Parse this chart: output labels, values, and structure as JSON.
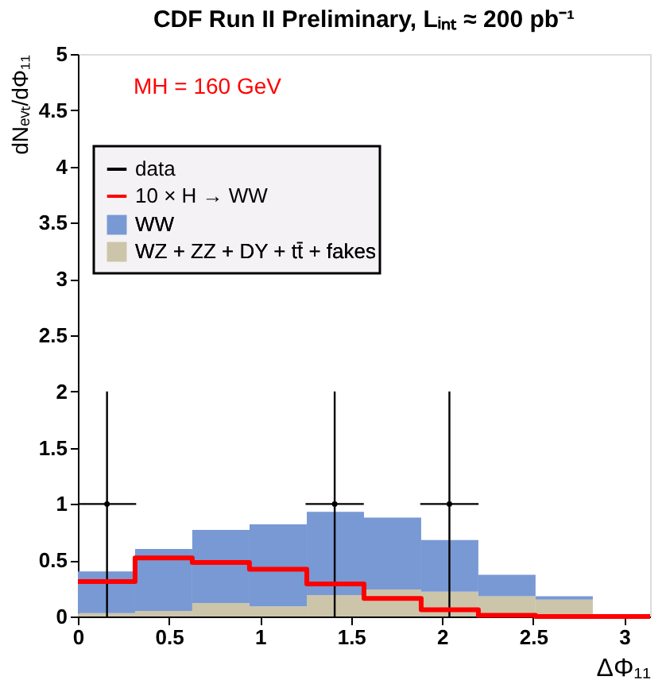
{
  "chart_data": {
    "type": "bar",
    "title": "CDF Run II Preliminary, Lᵢₙₜ ≈ 200 pb⁻¹",
    "xlabel": "ΔΦ₁₁",
    "ylabel": "dNₑᵥₜ/dΦ₁₁",
    "annotations": [
      "MH = 160 GeV"
    ],
    "x": [
      0.157,
      0.471,
      0.785,
      1.1,
      1.414,
      1.728,
      2.042,
      2.356,
      2.67,
      2.985
    ],
    "stacked": true,
    "series": [
      {
        "name": "WZ + ZZ + DY + tt̄ + fakes",
        "color": "#ccc5aa",
        "values": [
          0.03,
          0.05,
          0.12,
          0.09,
          0.19,
          0.24,
          0.22,
          0.18,
          0.15,
          0
        ]
      },
      {
        "name": "WW",
        "color": "#7899d4",
        "values": [
          0.37,
          0.55,
          0.65,
          0.73,
          0.74,
          0.64,
          0.46,
          0.19,
          0.03,
          0
        ]
      },
      {
        "name": "data",
        "type": "scatter",
        "color": "#000000",
        "marker": "circle",
        "x": [
          0.16,
          1.41,
          2.04
        ],
        "values": [
          1,
          1,
          1
        ],
        "errors": [
          1,
          1,
          1
        ],
        "xerrors": [
          0.16,
          0.16,
          0.16
        ]
      },
      {
        "name": "10 × H → WW",
        "type": "step",
        "color": "#ff0000",
        "x": [
          0,
          0.314,
          0.628,
          0.942,
          1.257,
          1.571,
          1.885,
          2.199,
          2.513,
          2.827,
          3.142
        ],
        "values": [
          0.31,
          0.52,
          0.48,
          0.42,
          0.29,
          0.16,
          0.06,
          0.01,
          0,
          0,
          0
        ]
      }
    ],
    "xlim": [
      0,
      3.142
    ],
    "xticks": [
      0,
      0.5,
      1,
      1.5,
      2,
      2.5,
      3
    ],
    "ylim": [
      0,
      5
    ],
    "yticks": [
      0,
      0.5,
      1,
      1.5,
      2,
      2.5,
      3,
      3.5,
      4,
      4.5,
      5
    ],
    "grid": false,
    "legend": "top left"
  }
}
